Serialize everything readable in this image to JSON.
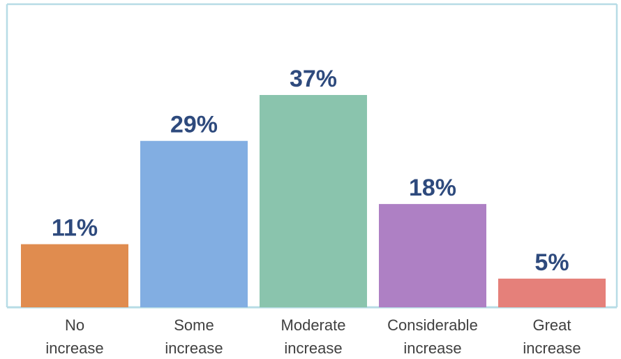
{
  "chart_data": {
    "type": "bar",
    "title": "",
    "xlabel": "",
    "ylabel": "",
    "ylim": [
      0,
      40
    ],
    "grid": false,
    "categories": [
      [
        "No",
        "increase"
      ],
      [
        "Some",
        "increase"
      ],
      [
        "Moderate",
        "increase"
      ],
      [
        "Considerable",
        "increase"
      ],
      [
        "Great",
        "increase"
      ]
    ],
    "values": [
      11,
      29,
      37,
      18,
      5
    ],
    "value_labels": [
      "11%",
      "29%",
      "37%",
      "18%",
      "5%"
    ],
    "colors": [
      "#E08C4F",
      "#82AEE2",
      "#8AC4AD",
      "#AE80C4",
      "#E5807A"
    ],
    "label_color": "#2E4A7D",
    "category_label_color": "#404040",
    "frame_color": "#B7DCE6"
  }
}
